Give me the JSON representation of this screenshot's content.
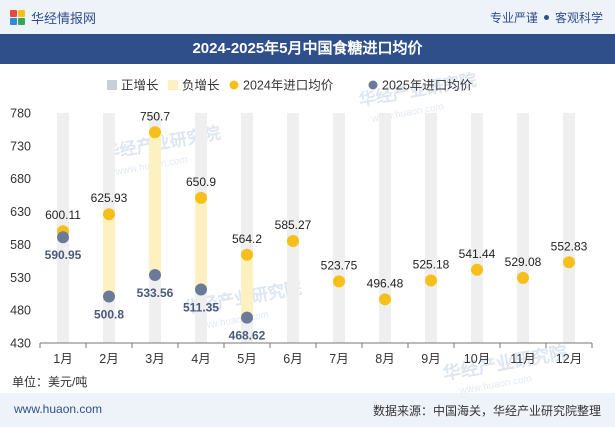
{
  "header": {
    "brand": "华经情报网",
    "slogan_left": "专业严谨",
    "slogan_right": "客观科学"
  },
  "watermark": "华经产业研究院",
  "watermark_url": "www.huaon.com",
  "unit": "单位：美元/吨",
  "footer": {
    "site": "www.huaon.com",
    "source": "数据来源：中国海关，华经产业研究院整理"
  },
  "colors": {
    "header_bg": "#2f4f8a",
    "series_2024": "#f7bf1a",
    "series_2025": "#6b7a99",
    "positive": "#c9ced8",
    "negative": "#fdf1c2",
    "column_bg": "#efefef"
  },
  "chart_data": {
    "type": "line",
    "title": "2024-2025年5月中国食糖进口均价",
    "categories": [
      "1月",
      "2月",
      "3月",
      "4月",
      "5月",
      "6月",
      "7月",
      "8月",
      "9月",
      "10月",
      "11月",
      "12月"
    ],
    "series": [
      {
        "name": "2024年进口均价",
        "values": [
          600.11,
          625.93,
          750.7,
          650.9,
          564.2,
          585.27,
          523.75,
          496.48,
          525.18,
          541.44,
          529.08,
          552.83
        ],
        "labels": [
          "600.11",
          "625.93",
          "750.7",
          "650.9",
          "564.2",
          "585.27",
          "523.75",
          "496.48",
          "525.18",
          "541.44",
          "529.08",
          "552.83"
        ]
      },
      {
        "name": "2025年进口均价",
        "values": [
          590.95,
          500.8,
          533.56,
          511.35,
          468.62,
          null,
          null,
          null,
          null,
          null,
          null,
          null
        ],
        "labels": [
          "590.95",
          "500.8",
          "533.56",
          "511.35",
          "468.62"
        ]
      }
    ],
    "legend": [
      "正增长",
      "负增长",
      "2024年进口均价",
      "2025年进口均价"
    ],
    "legend_position": "top",
    "ylim": [
      430,
      780
    ],
    "yticks": [
      430,
      480,
      530,
      580,
      630,
      680,
      730,
      780
    ],
    "grid": false
  }
}
